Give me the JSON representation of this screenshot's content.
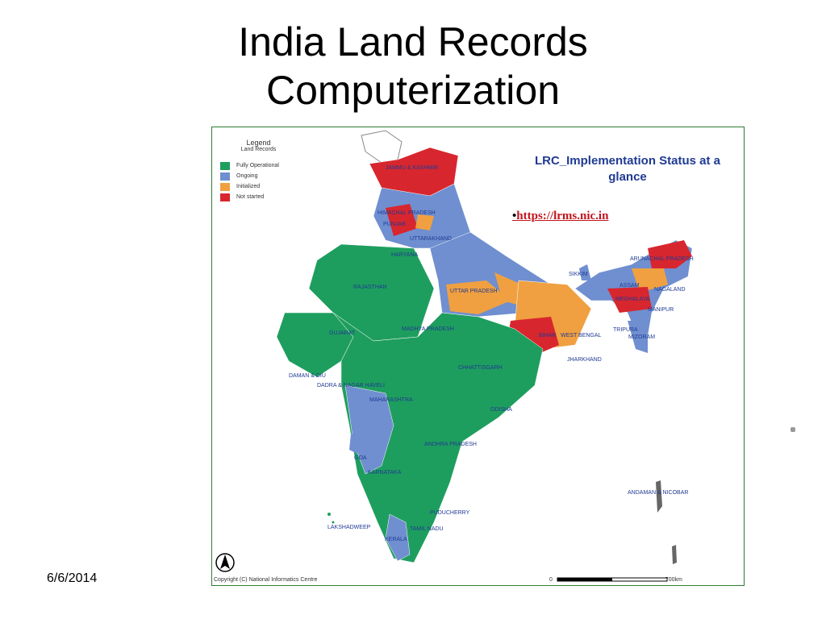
{
  "slide": {
    "title_line1": "India Land Records",
    "title_line2": "Computerization",
    "date": "6/6/2014"
  },
  "map": {
    "heading_line1": "LRC_Implementation Status at a",
    "heading_line2": "glance",
    "link_bullet": "•",
    "link_text": "https://lrms.nic.in",
    "legend": {
      "title": "Legend",
      "subtitle": "Land Records",
      "items": [
        {
          "label": "Fully Operational",
          "color": "#1e9e5e"
        },
        {
          "label": "Ongoing",
          "color": "#6f8fd0"
        },
        {
          "label": "Initialized",
          "color": "#f0a040"
        },
        {
          "label": "Not started",
          "color": "#d8262e"
        }
      ]
    },
    "copyright": "Copyright (C) National Informatics Centre",
    "scale_start": "0",
    "scale_end": "700km",
    "state_labels": [
      "JAMMU & KASHMIR",
      "HIMACHAL PRADESH",
      "PUNJAB",
      "UTTARAKHAND",
      "HARYANA",
      "RAJASTHAN",
      "UTTAR PRADESH",
      "BIHAR",
      "SIKKIM",
      "ARUNACHAL PRADESH",
      "ASSAM",
      "NAGALAND",
      "MEGHALAYA",
      "MANIPUR",
      "TRIPURA",
      "MIZORAM",
      "GUJARAT",
      "MADHYA PRADESH",
      "JHARKHAND",
      "WEST BENGAL",
      "CHHATTISGARH",
      "ODISHA",
      "DAMAN & DIU",
      "DADRA & NAGAR HAVELI",
      "MAHARASHTRA",
      "ANDHRA PRADESH",
      "GOA",
      "KARNATAKA",
      "PUDUCHERRY",
      "TAMIL NADU",
      "KERALA",
      "LAKSHADWEEP",
      "ANDAMAN & NICOBAR"
    ]
  }
}
